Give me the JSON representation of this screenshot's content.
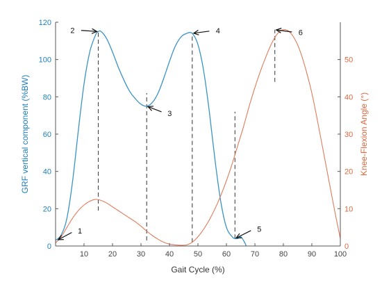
{
  "chart_data": {
    "type": "line",
    "xlabel": "Gait Cycle (%)",
    "ylabel_left": "GRF vertical component (%BW)",
    "ylabel_right": "Knee-Flexion Angle (°)",
    "xlim": [
      0,
      100
    ],
    "ylim_left": [
      0,
      120
    ],
    "ylim_right": [
      0,
      60
    ],
    "xticks": [
      10,
      20,
      30,
      40,
      50,
      60,
      70,
      80,
      90,
      100
    ],
    "yticks_left": [
      0,
      20,
      40,
      60,
      80,
      100,
      120
    ],
    "yticks_right": [
      0,
      10,
      20,
      30,
      40,
      50
    ],
    "grid": false,
    "colors": {
      "grf": "#3a93c4",
      "knee": "#e07a5a",
      "markers": "#444444"
    },
    "series": [
      {
        "axis": "left",
        "x": [
          0,
          2,
          4,
          6,
          8,
          10,
          12,
          14,
          15,
          16,
          18,
          20,
          22,
          24,
          26,
          28,
          30,
          32,
          34,
          36,
          38,
          40,
          42,
          44,
          46,
          48,
          50,
          52,
          54,
          56,
          58,
          60,
          62,
          63,
          64,
          65,
          66,
          67
        ],
        "y": [
          3,
          6,
          15,
          35,
          62,
          87,
          104,
          113,
          115,
          115,
          111,
          104,
          96,
          89,
          83,
          79,
          76,
          75,
          77,
          82,
          90,
          99,
          107,
          112,
          114,
          114,
          108,
          94,
          72,
          46,
          24,
          10,
          5,
          4,
          4,
          5,
          3,
          0
        ]
      },
      {
        "axis": "right",
        "x": [
          0,
          2,
          4,
          6,
          8,
          10,
          12,
          14,
          16,
          18,
          20,
          22,
          24,
          26,
          28,
          30,
          32,
          34,
          36,
          38,
          40,
          42,
          44,
          46,
          48,
          50,
          52,
          54,
          56,
          58,
          60,
          62,
          64,
          66,
          68,
          70,
          72,
          74,
          76,
          78,
          80,
          82,
          84,
          86,
          88,
          90,
          92,
          94,
          96,
          98,
          100
        ],
        "y": [
          0.8,
          2.5,
          5,
          7.5,
          9.5,
          11,
          12,
          12.5,
          12.2,
          11.5,
          10.5,
          9.5,
          8.5,
          7.5,
          6.5,
          5.3,
          4,
          2.8,
          1.8,
          1,
          0.5,
          0.3,
          0.2,
          0.3,
          1,
          2.5,
          4.5,
          7,
          10,
          13.5,
          17.5,
          22,
          27,
          32,
          37.5,
          42.5,
          47,
          51,
          54.5,
          57,
          58,
          57.5,
          55.5,
          52,
          47,
          41,
          33.5,
          25.5,
          17.5,
          9.5,
          2
        ]
      }
    ],
    "markers": [
      {
        "label": "1",
        "x": 0.5,
        "y": 3,
        "axis": "left",
        "line": null
      },
      {
        "label": "2",
        "x": 15,
        "y": 115,
        "axis": "left",
        "line": [
          19,
          115
        ]
      },
      {
        "label": "3",
        "x": 32,
        "y": 75,
        "axis": "left",
        "line": [
          3,
          82
        ]
      },
      {
        "label": "4",
        "x": 48,
        "y": 114,
        "axis": "left",
        "line": [
          2,
          114
        ]
      },
      {
        "label": "5",
        "x": 63,
        "y": 4,
        "axis": "left",
        "line": [
          4,
          72
        ]
      },
      {
        "label": "6",
        "x": 77,
        "y": 58,
        "axis": "right",
        "line": [
          44,
          58
        ]
      }
    ]
  }
}
